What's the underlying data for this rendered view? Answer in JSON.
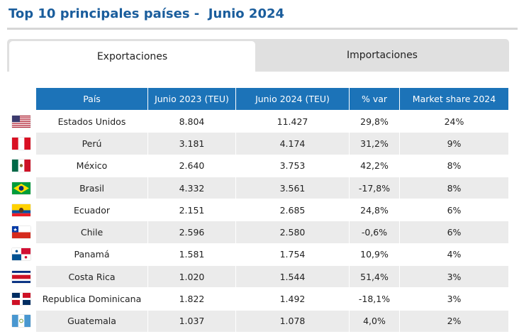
{
  "title": "Top 10 principales países -  Junio 2024",
  "tabs": [
    {
      "label": "Exportaciones",
      "active": true
    },
    {
      "label": "Importaciones",
      "active": false
    }
  ],
  "table": {
    "headers": [
      "País",
      "Junio 2023 (TEU)",
      "Junio 2024 (TEU)",
      "% var",
      "Market share 2024"
    ],
    "rows": [
      {
        "flag": "us-flag-icon",
        "country": "Estados Unidos",
        "jun2023": "8.804",
        "jun2024": "11.427",
        "var": "29,8%",
        "share": "24%"
      },
      {
        "flag": "peru-flag-icon",
        "country": "Perú",
        "jun2023": "3.181",
        "jun2024": "4.174",
        "var": "31,2%",
        "share": "9%"
      },
      {
        "flag": "mexico-flag-icon",
        "country": "México",
        "jun2023": "2.640",
        "jun2024": "3.753",
        "var": "42,2%",
        "share": "8%"
      },
      {
        "flag": "brazil-flag-icon",
        "country": "Brasil",
        "jun2023": "4.332",
        "jun2024": "3.561",
        "var": "-17,8%",
        "share": "8%"
      },
      {
        "flag": "ecuador-flag-icon",
        "country": "Ecuador",
        "jun2023": "2.151",
        "jun2024": "2.685",
        "var": "24,8%",
        "share": "6%"
      },
      {
        "flag": "chile-flag-icon",
        "country": "Chile",
        "jun2023": "2.596",
        "jun2024": "2.580",
        "var": "-0,6%",
        "share": "6%"
      },
      {
        "flag": "panama-flag-icon",
        "country": "Panamá",
        "jun2023": "1.581",
        "jun2024": "1.754",
        "var": "10,9%",
        "share": "4%"
      },
      {
        "flag": "costa-rica-flag-icon",
        "country": "Costa Rica",
        "jun2023": "1.020",
        "jun2024": "1.544",
        "var": "51,4%",
        "share": "3%"
      },
      {
        "flag": "dominican-republic-flag-icon",
        "country": "Republica Dominicana",
        "jun2023": "1.822",
        "jun2024": "1.492",
        "var": "-18,1%",
        "share": "3%"
      },
      {
        "flag": "guatemala-flag-icon",
        "country": "Guatemala",
        "jun2023": "1.037",
        "jun2024": "1.078",
        "var": "4,0%",
        "share": "2%"
      }
    ]
  },
  "colors": {
    "title": "#1a5d9c",
    "header_bg": "#1c73b8",
    "header_text": "#ffffff",
    "stripe": "#ebebeb",
    "tab_inactive": "#e0e0e0"
  }
}
